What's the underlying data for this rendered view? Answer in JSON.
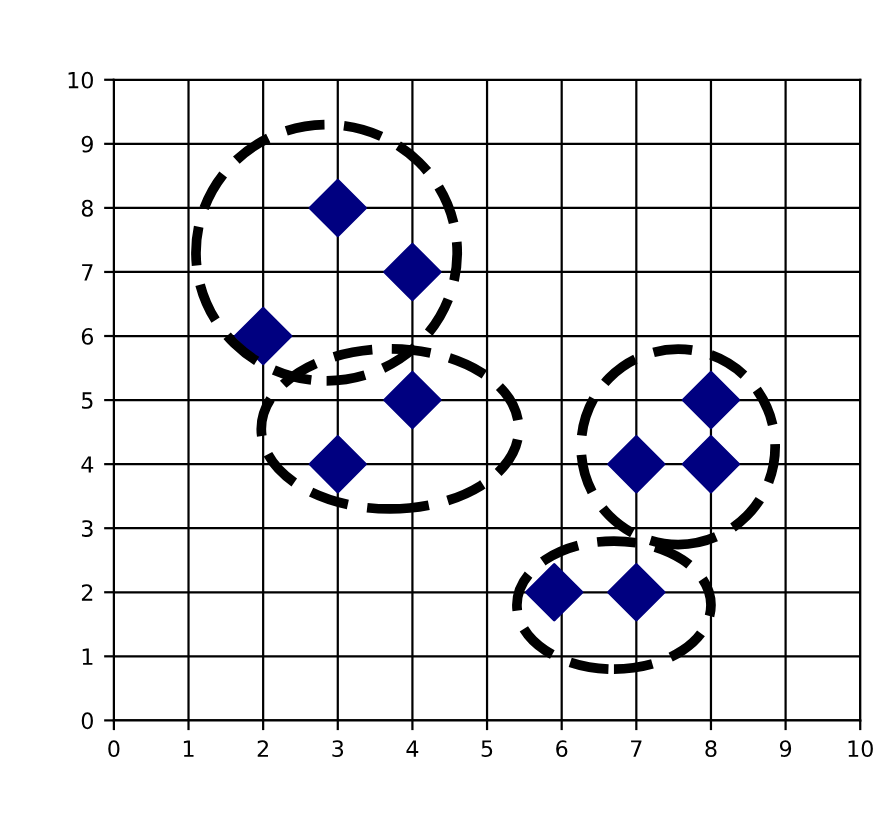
{
  "chart_data": {
    "type": "scatter",
    "x": [
      2,
      3,
      4,
      3,
      4,
      5.9,
      7,
      7,
      8,
      8
    ],
    "values": [
      6,
      8,
      7,
      4,
      5,
      2,
      2,
      4,
      4,
      5
    ],
    "color": "#000080",
    "marker": "diamond",
    "xlim": [
      0,
      10
    ],
    "ylim": [
      0,
      10
    ],
    "xticks": [
      0,
      1,
      2,
      3,
      4,
      5,
      6,
      7,
      8,
      9,
      10
    ],
    "yticks": [
      0,
      1,
      2,
      3,
      4,
      5,
      6,
      7,
      8,
      9,
      10
    ],
    "grid": true
  }
}
